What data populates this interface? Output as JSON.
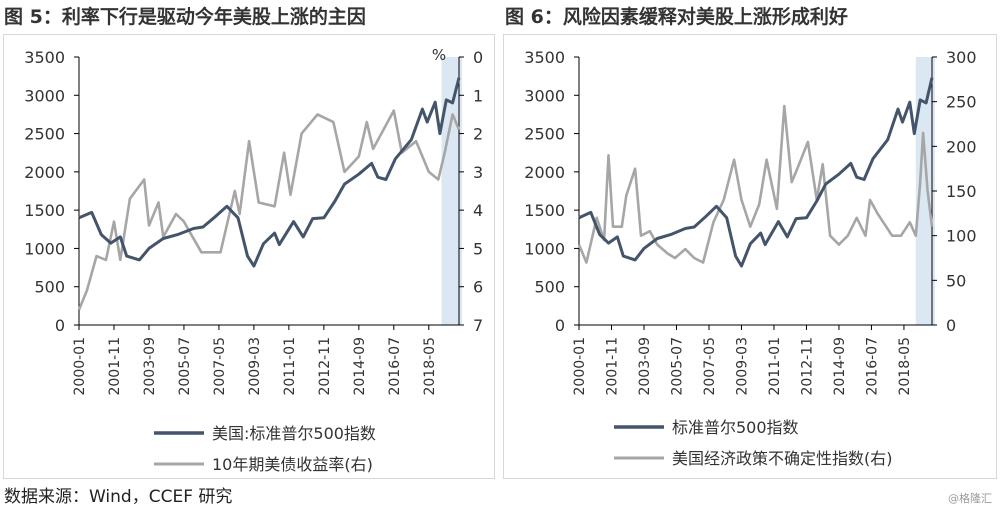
{
  "source_note": "数据来源：Wind，CCEF 研究",
  "watermark": "@格隆汇",
  "colors": {
    "sp500": "#44546a",
    "secondary": "#a6a6a6",
    "highlight": "#dbe8f3",
    "axis": "#000000"
  },
  "chart_data": [
    {
      "type": "line",
      "title": "图 5：利率下行是驱动今年美股上涨的主因",
      "x_ticks": [
        "2000-01",
        "2001-11",
        "2003-09",
        "2005-07",
        "2007-05",
        "2009-03",
        "2011-01",
        "2012-11",
        "2014-09",
        "2016-07",
        "2018-05"
      ],
      "x_range": [
        "2000-01",
        "2019-12"
      ],
      "highlight_range": [
        "2019-01",
        "2019-12"
      ],
      "y_left": {
        "range": [
          0,
          3500
        ],
        "ticks": [
          0,
          500,
          1000,
          1500,
          2000,
          2500,
          3000,
          3500
        ]
      },
      "y_right": {
        "range": [
          0,
          7
        ],
        "inverted": true,
        "unit": "%",
        "ticks": [
          0,
          1,
          2,
          3,
          4,
          5,
          6,
          7
        ]
      },
      "legend_position": "bottom",
      "series": [
        {
          "name": "美国:标准普尔500指数",
          "axis": "left",
          "color_key": "sp500",
          "points": [
            [
              "2000-01",
              1400
            ],
            [
              "2000-09",
              1470
            ],
            [
              "2001-03",
              1180
            ],
            [
              "2001-09",
              1070
            ],
            [
              "2002-03",
              1150
            ],
            [
              "2002-07",
              900
            ],
            [
              "2003-03",
              850
            ],
            [
              "2003-09",
              1000
            ],
            [
              "2004-06",
              1130
            ],
            [
              "2005-03",
              1180
            ],
            [
              "2006-01",
              1260
            ],
            [
              "2006-07",
              1280
            ],
            [
              "2007-03",
              1420
            ],
            [
              "2007-10",
              1550
            ],
            [
              "2008-05",
              1400
            ],
            [
              "2008-11",
              900
            ],
            [
              "2009-03",
              770
            ],
            [
              "2009-09",
              1060
            ],
            [
              "2010-04",
              1200
            ],
            [
              "2010-07",
              1050
            ],
            [
              "2011-04",
              1350
            ],
            [
              "2011-10",
              1150
            ],
            [
              "2012-04",
              1390
            ],
            [
              "2012-11",
              1400
            ],
            [
              "2013-06",
              1620
            ],
            [
              "2013-12",
              1840
            ],
            [
              "2014-09",
              1970
            ],
            [
              "2015-05",
              2110
            ],
            [
              "2015-09",
              1930
            ],
            [
              "2016-02",
              1900
            ],
            [
              "2016-08",
              2170
            ],
            [
              "2017-06",
              2420
            ],
            [
              "2018-01",
              2820
            ],
            [
              "2018-04",
              2650
            ],
            [
              "2018-09",
              2910
            ],
            [
              "2018-12",
              2500
            ],
            [
              "2019-04",
              2940
            ],
            [
              "2019-08",
              2900
            ],
            [
              "2019-12",
              3230
            ]
          ]
        },
        {
          "name": "10年期美债收益率(右)",
          "axis": "right",
          "color_key": "secondary",
          "points": [
            [
              "2000-01",
              6.6
            ],
            [
              "2000-06",
              6.1
            ],
            [
              "2000-12",
              5.2
            ],
            [
              "2001-06",
              5.3
            ],
            [
              "2001-11",
              4.3
            ],
            [
              "2002-03",
              5.3
            ],
            [
              "2002-09",
              3.7
            ],
            [
              "2003-06",
              3.2
            ],
            [
              "2003-09",
              4.4
            ],
            [
              "2004-03",
              3.8
            ],
            [
              "2004-06",
              4.7
            ],
            [
              "2005-02",
              4.1
            ],
            [
              "2005-07",
              4.3
            ],
            [
              "2006-06",
              5.1
            ],
            [
              "2007-06",
              5.1
            ],
            [
              "2008-03",
              3.5
            ],
            [
              "2008-06",
              4.1
            ],
            [
              "2008-12",
              2.2
            ],
            [
              "2009-06",
              3.8
            ],
            [
              "2010-04",
              3.9
            ],
            [
              "2010-10",
              2.5
            ],
            [
              "2011-02",
              3.6
            ],
            [
              "2011-09",
              2.0
            ],
            [
              "2012-07",
              1.5
            ],
            [
              "2013-05",
              1.7
            ],
            [
              "2013-12",
              3.0
            ],
            [
              "2014-09",
              2.6
            ],
            [
              "2015-02",
              1.7
            ],
            [
              "2015-06",
              2.4
            ],
            [
              "2016-07",
              1.4
            ],
            [
              "2016-12",
              2.5
            ],
            [
              "2017-09",
              2.2
            ],
            [
              "2018-05",
              3.0
            ],
            [
              "2018-11",
              3.2
            ],
            [
              "2019-03",
              2.5
            ],
            [
              "2019-08",
              1.5
            ],
            [
              "2019-12",
              1.9
            ]
          ]
        }
      ]
    },
    {
      "type": "line",
      "title": "图 6：风险因素缓释对美股上涨形成利好",
      "x_ticks": [
        "2000-01",
        "2001-11",
        "2003-09",
        "2005-07",
        "2007-05",
        "2009-03",
        "2011-01",
        "2012-11",
        "2014-09",
        "2016-07",
        "2018-05"
      ],
      "x_range": [
        "2000-01",
        "2019-12"
      ],
      "highlight_range": [
        "2019-01",
        "2019-12"
      ],
      "y_left": {
        "range": [
          0,
          3500
        ],
        "ticks": [
          0,
          500,
          1000,
          1500,
          2000,
          2500,
          3000,
          3500
        ]
      },
      "y_right": {
        "range": [
          0,
          300
        ],
        "ticks": [
          0,
          50,
          100,
          150,
          200,
          250,
          300
        ]
      },
      "legend_position": "bottom",
      "series": [
        {
          "name": "标准普尔500指数",
          "axis": "left",
          "color_key": "sp500",
          "points": [
            [
              "2000-01",
              1400
            ],
            [
              "2000-09",
              1470
            ],
            [
              "2001-03",
              1180
            ],
            [
              "2001-09",
              1070
            ],
            [
              "2002-03",
              1150
            ],
            [
              "2002-07",
              900
            ],
            [
              "2003-03",
              850
            ],
            [
              "2003-09",
              1000
            ],
            [
              "2004-06",
              1130
            ],
            [
              "2005-03",
              1180
            ],
            [
              "2006-01",
              1260
            ],
            [
              "2006-07",
              1280
            ],
            [
              "2007-03",
              1420
            ],
            [
              "2007-10",
              1550
            ],
            [
              "2008-05",
              1400
            ],
            [
              "2008-11",
              900
            ],
            [
              "2009-03",
              770
            ],
            [
              "2009-09",
              1060
            ],
            [
              "2010-04",
              1200
            ],
            [
              "2010-07",
              1050
            ],
            [
              "2011-04",
              1350
            ],
            [
              "2011-10",
              1150
            ],
            [
              "2012-04",
              1390
            ],
            [
              "2012-11",
              1400
            ],
            [
              "2013-06",
              1620
            ],
            [
              "2013-12",
              1840
            ],
            [
              "2014-09",
              1970
            ],
            [
              "2015-05",
              2110
            ],
            [
              "2015-09",
              1930
            ],
            [
              "2016-02",
              1900
            ],
            [
              "2016-08",
              2170
            ],
            [
              "2017-06",
              2420
            ],
            [
              "2018-01",
              2820
            ],
            [
              "2018-04",
              2650
            ],
            [
              "2018-09",
              2910
            ],
            [
              "2018-12",
              2500
            ],
            [
              "2019-04",
              2940
            ],
            [
              "2019-08",
              2900
            ],
            [
              "2019-12",
              3230
            ]
          ]
        },
        {
          "name": "美国经济政策不确定性指数(右)",
          "axis": "right",
          "color_key": "secondary",
          "points": [
            [
              "2000-01",
              90
            ],
            [
              "2000-06",
              70
            ],
            [
              "2001-01",
              120
            ],
            [
              "2001-06",
              95
            ],
            [
              "2001-09",
              190
            ],
            [
              "2001-12",
              110
            ],
            [
              "2002-06",
              110
            ],
            [
              "2002-09",
              145
            ],
            [
              "2003-03",
              175
            ],
            [
              "2003-07",
              100
            ],
            [
              "2004-01",
              105
            ],
            [
              "2004-06",
              90
            ],
            [
              "2005-01",
              80
            ],
            [
              "2005-06",
              75
            ],
            [
              "2006-01",
              85
            ],
            [
              "2006-07",
              75
            ],
            [
              "2007-01",
              70
            ],
            [
              "2007-08",
              115
            ],
            [
              "2008-03",
              140
            ],
            [
              "2008-10",
              185
            ],
            [
              "2009-03",
              140
            ],
            [
              "2009-09",
              110
            ],
            [
              "2010-03",
              135
            ],
            [
              "2010-08",
              185
            ],
            [
              "2011-03",
              130
            ],
            [
              "2011-08",
              245
            ],
            [
              "2012-01",
              160
            ],
            [
              "2012-06",
              180
            ],
            [
              "2012-12",
              205
            ],
            [
              "2013-06",
              140
            ],
            [
              "2013-10",
              180
            ],
            [
              "2014-03",
              100
            ],
            [
              "2014-09",
              90
            ],
            [
              "2015-03",
              100
            ],
            [
              "2015-09",
              120
            ],
            [
              "2016-03",
              100
            ],
            [
              "2016-06",
              140
            ],
            [
              "2016-11",
              125
            ],
            [
              "2017-03",
              115
            ],
            [
              "2017-09",
              100
            ],
            [
              "2018-03",
              100
            ],
            [
              "2018-09",
              115
            ],
            [
              "2019-01",
              100
            ],
            [
              "2019-04",
              160
            ],
            [
              "2019-06",
              215
            ],
            [
              "2019-09",
              150
            ],
            [
              "2019-12",
              110
            ]
          ]
        }
      ]
    }
  ]
}
